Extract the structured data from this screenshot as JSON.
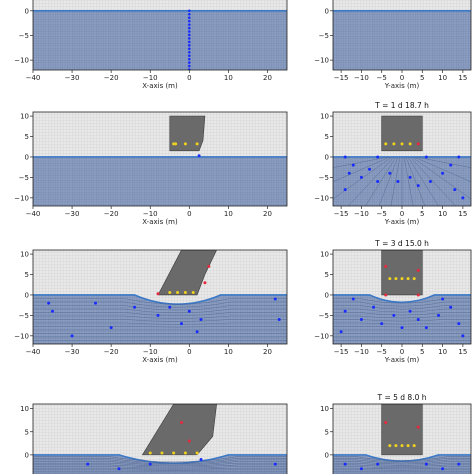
{
  "chart_data": [
    {
      "type": "scatter",
      "id": "r0_left",
      "xlim": [
        -40,
        25
      ],
      "ylim": [
        -12,
        3
      ],
      "xticks": [
        "−40",
        "−30",
        "−20",
        "−10",
        "0",
        "10",
        "20"
      ],
      "yticks": [
        "0",
        "−5",
        "−10"
      ],
      "xlabel": "X-axis (m)",
      "title": "",
      "cut_top": true,
      "fill_top": 0,
      "body": null,
      "dots": []
    },
    {
      "type": "scatter",
      "id": "r0_right",
      "xlim": [
        -17,
        17
      ],
      "ylim": [
        -12,
        3
      ],
      "xticks": [
        "−15",
        "−10",
        "−5",
        "0",
        "5",
        "10",
        "15"
      ],
      "yticks": [
        "0",
        "−5",
        "−10"
      ],
      "xlabel": "Y-axis (m)",
      "title": "",
      "cut_top": true,
      "fill_top": 0,
      "body": null,
      "dots": []
    },
    {
      "type": "scatter",
      "id": "r1_left",
      "xlim": [
        -40,
        25
      ],
      "ylim": [
        -12,
        11
      ],
      "xticks": [
        "−40",
        "−30",
        "−20",
        "−10",
        "0",
        "10",
        "20"
      ],
      "yticks": [
        "10",
        "5",
        "0",
        "−5",
        "−10"
      ],
      "xlabel": "X-axis (m)",
      "title": "",
      "fill_top": 0,
      "depression": null,
      "body": [
        [
          -5,
          10
        ],
        [
          4,
          10
        ],
        [
          3.5,
          4
        ],
        [
          2.5,
          1.5
        ],
        [
          -5,
          1.5
        ]
      ],
      "dots": [
        {
          "x": -3.5,
          "y": 3.2,
          "c": "yellow"
        },
        {
          "x": -1,
          "y": 3.2,
          "c": "yellow"
        },
        {
          "x": 2,
          "y": 3.2,
          "c": "yellow"
        },
        {
          "x": 2.5,
          "y": 0.3,
          "c": "blue"
        },
        {
          "x": -4,
          "y": 3.2,
          "c": "yellow"
        }
      ]
    },
    {
      "type": "scatter",
      "id": "r1_right",
      "xlim": [
        -17,
        17
      ],
      "ylim": [
        -12,
        11
      ],
      "xticks": [
        "−15",
        "−10",
        "−5",
        "0",
        "5",
        "10",
        "15"
      ],
      "yticks": [
        "10",
        "5",
        "0",
        "−5",
        "−10"
      ],
      "xlabel": "Y-axis (m)",
      "title": "T = 1 d 18.7 h",
      "fill_top": 0,
      "depression": null,
      "body": [
        [
          -5,
          10
        ],
        [
          5,
          10
        ],
        [
          5,
          1.5
        ],
        [
          -5,
          1.5
        ]
      ],
      "dots": [
        {
          "x": -4,
          "y": 3.2,
          "c": "yellow"
        },
        {
          "x": -2,
          "y": 3.2,
          "c": "yellow"
        },
        {
          "x": 0,
          "y": 3.2,
          "c": "yellow"
        },
        {
          "x": 2,
          "y": 3.2,
          "c": "yellow"
        },
        {
          "x": 4,
          "y": 3.2,
          "c": "red"
        },
        {
          "x": -14,
          "y": 0,
          "c": "blue"
        },
        {
          "x": -6,
          "y": 0,
          "c": "blue"
        },
        {
          "x": 6,
          "y": 0,
          "c": "blue"
        },
        {
          "x": 14,
          "y": 0,
          "c": "blue"
        },
        {
          "x": -13,
          "y": -4,
          "c": "blue"
        },
        {
          "x": -10,
          "y": -5,
          "c": "blue"
        },
        {
          "x": -8,
          "y": -3,
          "c": "blue"
        },
        {
          "x": -6,
          "y": -6,
          "c": "blue"
        },
        {
          "x": -3,
          "y": -4,
          "c": "blue"
        },
        {
          "x": -1,
          "y": -6,
          "c": "blue"
        },
        {
          "x": 2,
          "y": -5,
          "c": "blue"
        },
        {
          "x": 4,
          "y": -7,
          "c": "blue"
        },
        {
          "x": 7,
          "y": -6,
          "c": "blue"
        },
        {
          "x": 10,
          "y": -4,
          "c": "blue"
        },
        {
          "x": 13,
          "y": -8,
          "c": "blue"
        },
        {
          "x": -14,
          "y": -8,
          "c": "blue"
        },
        {
          "x": -12,
          "y": -2,
          "c": "blue"
        },
        {
          "x": 12,
          "y": -2,
          "c": "blue"
        },
        {
          "x": 15,
          "y": -10,
          "c": "blue"
        }
      ]
    },
    {
      "type": "scatter",
      "id": "r2_left",
      "xlim": [
        -40,
        25
      ],
      "ylim": [
        -12,
        11
      ],
      "xticks": [
        "−40",
        "−30",
        "−20",
        "−10",
        "0",
        "10",
        "20"
      ],
      "yticks": [
        "10",
        "5",
        "0",
        "−5",
        "−10"
      ],
      "xlabel": "X-axis (m)",
      "title": "",
      "fill_top": 0,
      "depression": [
        -14,
        8,
        -2.5
      ],
      "body": [
        [
          -2,
          11
        ],
        [
          7,
          11
        ],
        [
          4,
          5
        ],
        [
          2,
          0
        ],
        [
          -8,
          0
        ]
      ],
      "dots": [
        {
          "x": 5,
          "y": 7,
          "c": "red"
        },
        {
          "x": 4,
          "y": 3,
          "c": "red"
        },
        {
          "x": -5,
          "y": 0.6,
          "c": "yellow"
        },
        {
          "x": -3,
          "y": 0.6,
          "c": "yellow"
        },
        {
          "x": -1,
          "y": 0.6,
          "c": "yellow"
        },
        {
          "x": 1,
          "y": 0.6,
          "c": "yellow"
        },
        {
          "x": -8,
          "y": 0.3,
          "c": "red"
        },
        {
          "x": -35,
          "y": -4,
          "c": "blue"
        },
        {
          "x": -30,
          "y": -10,
          "c": "blue"
        },
        {
          "x": -24,
          "y": -2,
          "c": "blue"
        },
        {
          "x": -20,
          "y": -8,
          "c": "blue"
        },
        {
          "x": -14,
          "y": -3,
          "c": "blue"
        },
        {
          "x": -8,
          "y": -5,
          "c": "blue"
        },
        {
          "x": -5,
          "y": -3,
          "c": "blue"
        },
        {
          "x": -2,
          "y": -7,
          "c": "blue"
        },
        {
          "x": 0,
          "y": -4,
          "c": "blue"
        },
        {
          "x": 2,
          "y": -9,
          "c": "blue"
        },
        {
          "x": 3,
          "y": -6,
          "c": "blue"
        },
        {
          "x": 22,
          "y": -1,
          "c": "blue"
        },
        {
          "x": 23,
          "y": -6,
          "c": "blue"
        },
        {
          "x": -36,
          "y": -2,
          "c": "blue"
        }
      ]
    },
    {
      "type": "scatter",
      "id": "r2_right",
      "xlim": [
        -17,
        17
      ],
      "ylim": [
        -12,
        11
      ],
      "xticks": [
        "−15",
        "−10",
        "−5",
        "0",
        "5",
        "10",
        "15"
      ],
      "yticks": [
        "10",
        "5",
        "0",
        "−5",
        "−10"
      ],
      "xlabel": "Y-axis (m)",
      "title": "T = 3 d 15.0 h",
      "fill_top": 0,
      "depression": [
        -8,
        8,
        -2
      ],
      "body": [
        [
          -5,
          11
        ],
        [
          5,
          11
        ],
        [
          5,
          0
        ],
        [
          -5,
          0
        ]
      ],
      "dots": [
        {
          "x": -4,
          "y": 7,
          "c": "red"
        },
        {
          "x": 4,
          "y": 6,
          "c": "red"
        },
        {
          "x": -3,
          "y": 4,
          "c": "yellow"
        },
        {
          "x": -1.5,
          "y": 4,
          "c": "yellow"
        },
        {
          "x": 0,
          "y": 4,
          "c": "yellow"
        },
        {
          "x": 1.5,
          "y": 4,
          "c": "yellow"
        },
        {
          "x": 3,
          "y": 4,
          "c": "yellow"
        },
        {
          "x": -4,
          "y": 0,
          "c": "red"
        },
        {
          "x": 4,
          "y": 0,
          "c": "red"
        },
        {
          "x": -12,
          "y": -1,
          "c": "blue"
        },
        {
          "x": -14,
          "y": -4,
          "c": "blue"
        },
        {
          "x": -10,
          "y": -6,
          "c": "blue"
        },
        {
          "x": -7,
          "y": -3,
          "c": "blue"
        },
        {
          "x": -5,
          "y": -7,
          "c": "blue"
        },
        {
          "x": -2,
          "y": -5,
          "c": "blue"
        },
        {
          "x": 0,
          "y": -8,
          "c": "blue"
        },
        {
          "x": 2,
          "y": -4,
          "c": "blue"
        },
        {
          "x": 4,
          "y": -6,
          "c": "blue"
        },
        {
          "x": 6,
          "y": -8,
          "c": "blue"
        },
        {
          "x": 9,
          "y": -5,
          "c": "blue"
        },
        {
          "x": 12,
          "y": -3,
          "c": "blue"
        },
        {
          "x": 14,
          "y": -7,
          "c": "blue"
        },
        {
          "x": -15,
          "y": -9,
          "c": "blue"
        },
        {
          "x": 15,
          "y": -10,
          "c": "blue"
        },
        {
          "x": 10,
          "y": -1,
          "c": "blue"
        }
      ]
    },
    {
      "type": "scatter",
      "id": "r3_left",
      "xlim": [
        -40,
        25
      ],
      "ylim": [
        -5,
        11
      ],
      "xticks": [],
      "yticks": [
        "10",
        "5",
        "0"
      ],
      "xlabel": "",
      "title": "",
      "cut_bottom": true,
      "fill_top": 0,
      "depression": [
        -18,
        10,
        -2
      ],
      "body": [
        [
          -4,
          11
        ],
        [
          7,
          11
        ],
        [
          6,
          4
        ],
        [
          2,
          0
        ],
        [
          -12,
          0
        ]
      ],
      "dots": [
        {
          "x": -2,
          "y": 7,
          "c": "red"
        },
        {
          "x": 0,
          "y": 3,
          "c": "red"
        },
        {
          "x": -10,
          "y": 0.4,
          "c": "yellow"
        },
        {
          "x": -7,
          "y": 0.4,
          "c": "yellow"
        },
        {
          "x": -4,
          "y": 0.4,
          "c": "yellow"
        },
        {
          "x": -1,
          "y": 0.4,
          "c": "yellow"
        },
        {
          "x": 2,
          "y": 0.4,
          "c": "yellow"
        },
        {
          "x": -26,
          "y": -2,
          "c": "blue"
        },
        {
          "x": -18,
          "y": -3,
          "c": "blue"
        },
        {
          "x": -10,
          "y": -2,
          "c": "blue"
        },
        {
          "x": 3,
          "y": -1,
          "c": "blue"
        },
        {
          "x": 22,
          "y": -2,
          "c": "blue"
        }
      ]
    },
    {
      "type": "scatter",
      "id": "r3_right",
      "xlim": [
        -17,
        17
      ],
      "ylim": [
        -5,
        11
      ],
      "xticks": [],
      "yticks": [
        "10",
        "5",
        "0"
      ],
      "xlabel": "",
      "title": "T = 5 d  8.0 h",
      "cut_bottom": true,
      "fill_top": 0,
      "depression": [
        -9,
        9,
        -1.5
      ],
      "body": [
        [
          -5,
          11
        ],
        [
          5,
          11
        ],
        [
          5,
          0
        ],
        [
          -5,
          0
        ]
      ],
      "dots": [
        {
          "x": -4,
          "y": 7,
          "c": "red"
        },
        {
          "x": 4,
          "y": 6,
          "c": "red"
        },
        {
          "x": -3,
          "y": 2,
          "c": "yellow"
        },
        {
          "x": -1.5,
          "y": 2,
          "c": "yellow"
        },
        {
          "x": 0,
          "y": 2,
          "c": "yellow"
        },
        {
          "x": 1.5,
          "y": 2,
          "c": "yellow"
        },
        {
          "x": 3,
          "y": 2,
          "c": "yellow"
        },
        {
          "x": -14,
          "y": -2,
          "c": "blue"
        },
        {
          "x": -10,
          "y": -3,
          "c": "blue"
        },
        {
          "x": -6,
          "y": -2,
          "c": "blue"
        },
        {
          "x": 6,
          "y": -2,
          "c": "blue"
        },
        {
          "x": 10,
          "y": -3,
          "c": "blue"
        },
        {
          "x": 14,
          "y": -2,
          "c": "blue"
        }
      ]
    }
  ],
  "colors": {
    "soil": "#8b9ec2",
    "soil_line": "#5e6f96",
    "air_bg": "#e8e8e8",
    "air_grid": "#c8c8c8",
    "surface": "#3a78c8",
    "body": "#6a6a6a",
    "body_line": "#3c3c3c",
    "dot_blue": "#1a2cff",
    "dot_red": "#e8283c",
    "dot_yellow": "#f0d21e",
    "spine": "#222222"
  }
}
